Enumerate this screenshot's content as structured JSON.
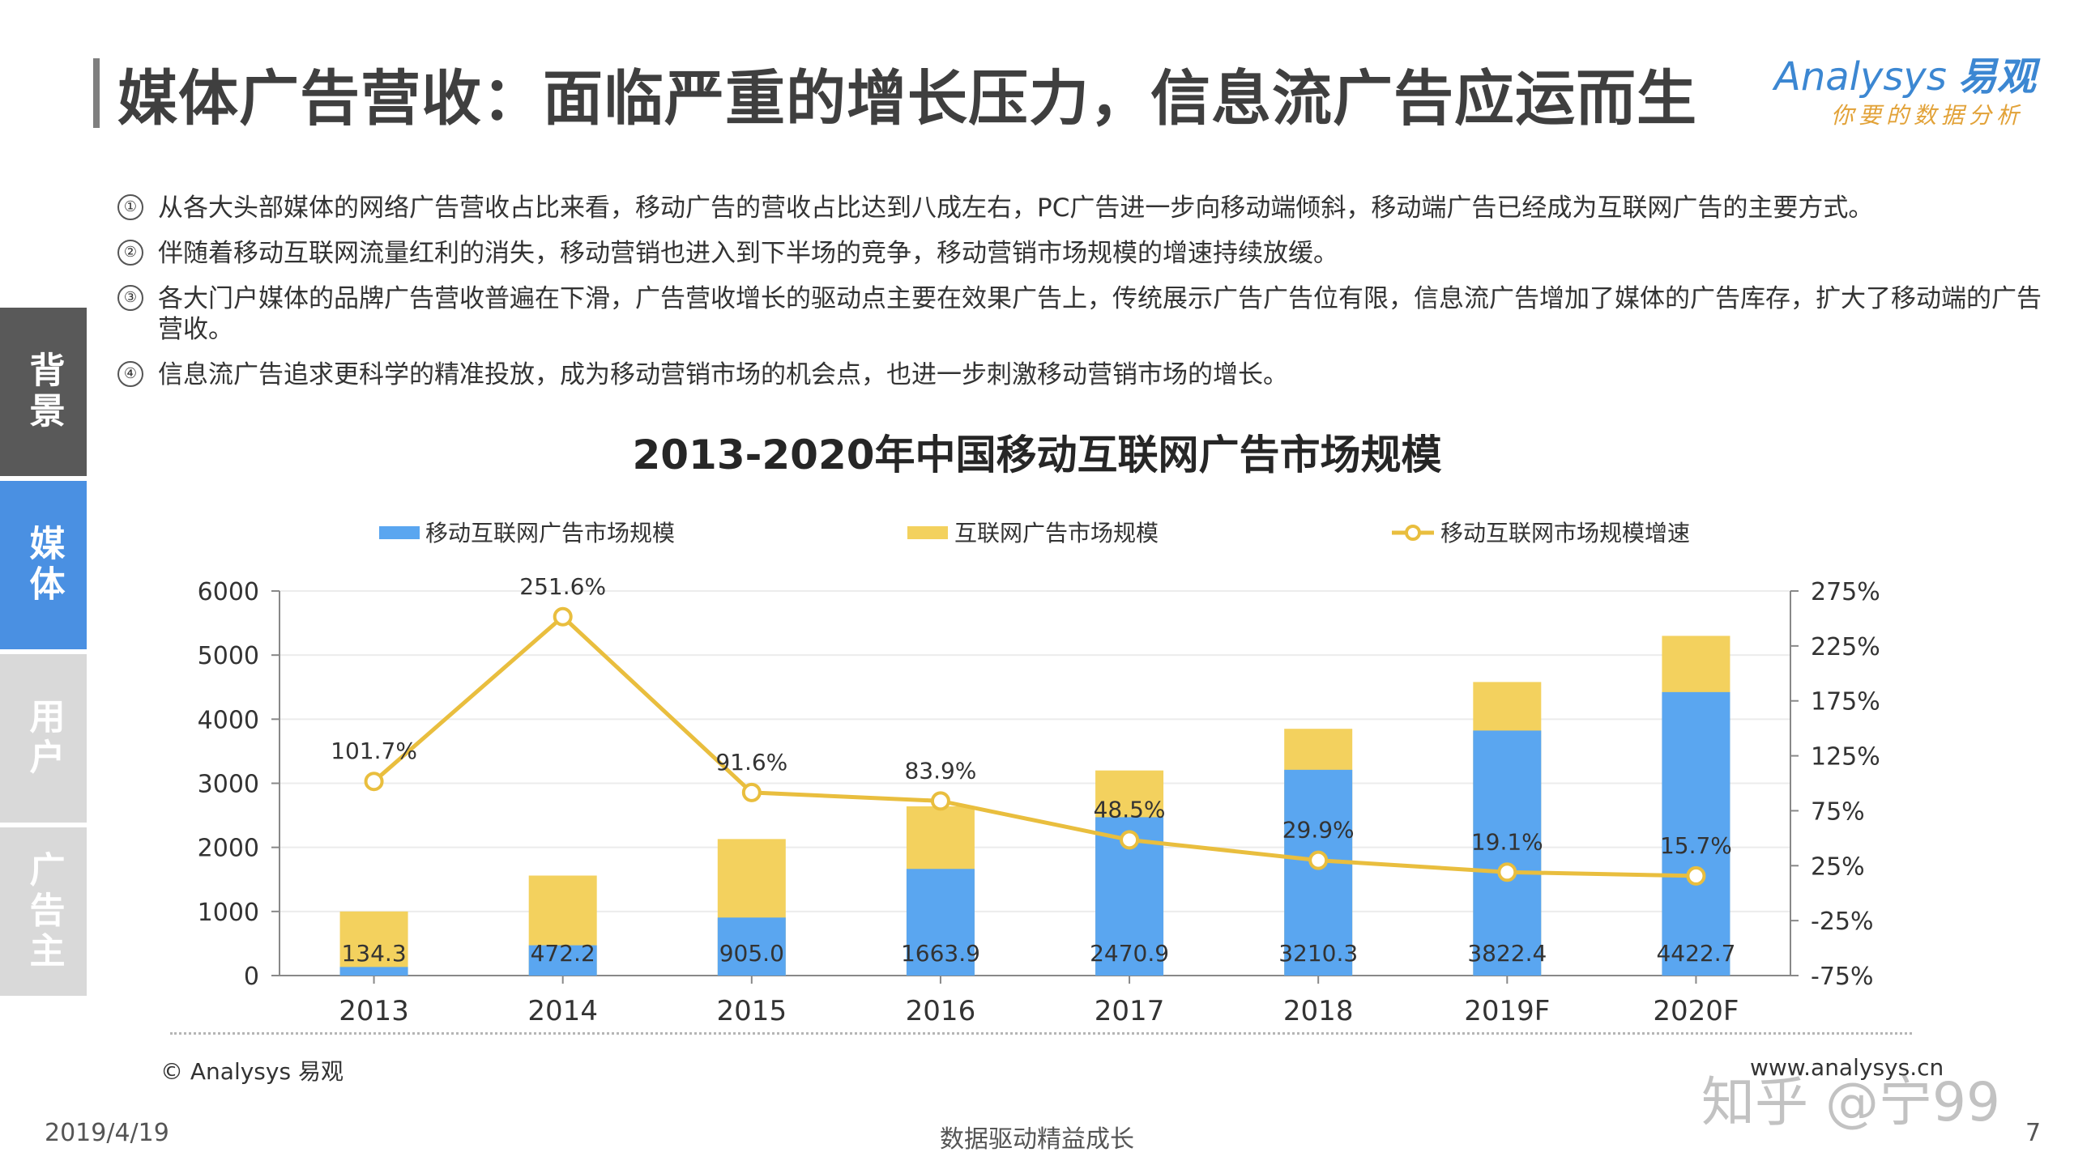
{
  "header": {
    "title": "媒体广告营收：面临严重的增长压力，信息流广告应运而生",
    "logo_en": "Analysys",
    "logo_cn": "易观",
    "logo_slogan": "你要的数据分析"
  },
  "bullets": [
    {
      "num": "①",
      "text": "从各大头部媒体的网络广告营收占比来看，移动广告的营收占比达到八成左右，PC广告进一步向移动端倾斜，移动端广告已经成为互联网广告的主要方式。"
    },
    {
      "num": "②",
      "text": "伴随着移动互联网流量红利的消失，移动营销也进入到下半场的竞争，移动营销市场规模的增速持续放缓。"
    },
    {
      "num": "③",
      "text": "各大门户媒体的品牌广告营收普遍在下滑，广告营收增长的驱动点主要在效果广告上，传统展示广告广告位有限，信息流广告增加了媒体的广告库存，扩大了移动端的广告营收。"
    },
    {
      "num": "④",
      "text": "信息流广告追求更科学的精准投放，成为移动营销市场的机会点，也进一步刺激移动营销市场的增长。"
    }
  ],
  "side_tabs": [
    "背景",
    "媒体",
    "用户",
    "广告主"
  ],
  "colors": {
    "mobile": "#5aa6f0",
    "internet": "#f3d15e",
    "growth": "#e9be3e",
    "tab_dark": "#595959",
    "tab_active": "#4a90e2",
    "tab_light": "#d9d9d9"
  },
  "chart_data": {
    "type": "bar",
    "title": "2013-2020年中国移动互联网广告市场规模",
    "categories": [
      "2013",
      "2014",
      "2015",
      "2016",
      "2017",
      "2018",
      "2019F",
      "2020F"
    ],
    "series": [
      {
        "name": "移动互联网广告市场规模",
        "kind": "bar",
        "values": [
          134.3,
          472.2,
          905.0,
          1663.9,
          2470.9,
          3210.3,
          3822.4,
          4422.7
        ],
        "labels": [
          "134.3",
          "472.2",
          "905.0",
          "1663.9",
          "2470.9",
          "3210.3",
          "3822.4",
          "4422.7"
        ]
      },
      {
        "name": "互联网广告市场规模",
        "kind": "bar",
        "values": [
          1000,
          1560,
          2130,
          2640,
          3200,
          3850,
          4580,
          5300
        ]
      },
      {
        "name": "移动互联网市场规模增速",
        "kind": "line",
        "axis": "right",
        "values": [
          101.7,
          251.6,
          91.6,
          83.9,
          48.5,
          29.9,
          19.1,
          15.7
        ],
        "labels": [
          "101.7%",
          "251.6%",
          "91.6%",
          "83.9%",
          "48.5%",
          "29.9%",
          "19.1%",
          "15.7%"
        ]
      }
    ],
    "y_left": {
      "ylim": [
        0,
        6000
      ],
      "ticks": [
        "0",
        "1000",
        "2000",
        "3000",
        "4000",
        "5000",
        "6000"
      ]
    },
    "y_right": {
      "ylim": [
        -75,
        275
      ],
      "ticks": [
        "-75%",
        "-25%",
        "25%",
        "75%",
        "125%",
        "175%",
        "225%",
        "275%"
      ]
    },
    "legend_placement": "top-center",
    "grid": true
  },
  "footer": {
    "source": "© Analysys 易观",
    "website": "www.analysys.cn",
    "date": "2019/4/19",
    "center": "数据驱动精益成长",
    "page": "7",
    "zhihu_mark": "知乎 @宁99"
  }
}
